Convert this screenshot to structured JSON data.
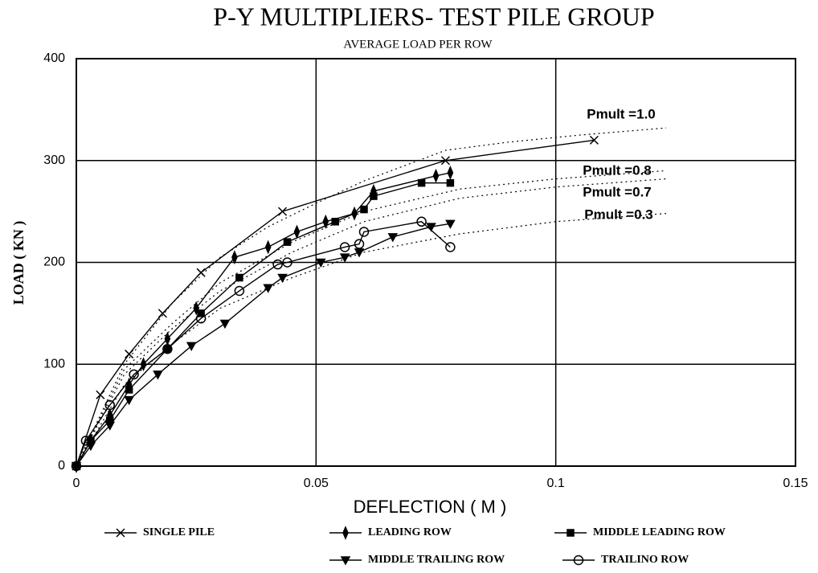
{
  "chart_data": {
    "type": "line",
    "title": "P-Y MULTIPLIERS- TEST PILE GROUP",
    "subtitle": "AVERAGE LOAD PER ROW",
    "x_label": "DEFLECTION ( M )",
    "y_label": "LOAD ( KN )",
    "xlim": [
      0,
      0.15
    ],
    "xticks": [
      0,
      0.05,
      0.1,
      0.15
    ],
    "ylim": [
      0,
      400
    ],
    "yticks": [
      0,
      100,
      200,
      300,
      400
    ],
    "grid": true,
    "color": "#000000",
    "series": [
      {
        "name": "SINGLE PILE",
        "marker": "x",
        "x": [
          0,
          0.005,
          0.011,
          0.018,
          0.026,
          0.043,
          0.077,
          0.108
        ],
        "values": [
          0,
          70,
          110,
          150,
          190,
          250,
          300,
          320
        ]
      },
      {
        "name": "LEADING ROW",
        "marker": "diamond",
        "x": [
          0,
          0.003,
          0.007,
          0.011,
          0.014,
          0.019,
          0.025,
          0.033,
          0.04,
          0.046,
          0.052,
          0.058,
          0.062,
          0.075,
          0.078
        ],
        "values": [
          0,
          25,
          50,
          80,
          100,
          125,
          155,
          205,
          215,
          230,
          240,
          248,
          270,
          285,
          288
        ]
      },
      {
        "name": "MIDDLE LEADING ROW",
        "marker": "square",
        "x": [
          0,
          0.003,
          0.007,
          0.011,
          0.019,
          0.026,
          0.034,
          0.044,
          0.054,
          0.06,
          0.062,
          0.072,
          0.078
        ],
        "values": [
          0,
          25,
          45,
          75,
          115,
          150,
          185,
          220,
          240,
          252,
          265,
          278,
          278
        ]
      },
      {
        "name": "MIDDLE TRAILING ROW",
        "marker": "triangle",
        "x": [
          0,
          0.003,
          0.007,
          0.011,
          0.017,
          0.024,
          0.031,
          0.04,
          0.043,
          0.051,
          0.056,
          0.059,
          0.066,
          0.074,
          0.078
        ],
        "values": [
          0,
          20,
          40,
          65,
          90,
          118,
          140,
          175,
          185,
          200,
          205,
          210,
          225,
          235,
          238
        ]
      },
      {
        "name": "TRAILINO ROW",
        "marker": "circle",
        "x": [
          0,
          0.002,
          0.007,
          0.012,
          0.019,
          0.026,
          0.034,
          0.042,
          0.044,
          0.056,
          0.059,
          0.06,
          0.072,
          0.078
        ],
        "values": [
          0,
          25,
          60,
          90,
          115,
          145,
          172,
          198,
          200,
          215,
          218,
          230,
          240,
          215
        ]
      }
    ],
    "fit_curves": [
      {
        "label": "Pmult =1.0",
        "x": [
          0,
          0.01,
          0.02,
          0.03,
          0.04,
          0.05,
          0.06,
          0.077,
          0.09,
          0.105,
          0.123
        ],
        "values": [
          0,
          100,
          160,
          205,
          235,
          258,
          280,
          310,
          318,
          325,
          332
        ]
      },
      {
        "label": "Pmult =0.8",
        "x": [
          0,
          0.01,
          0.02,
          0.03,
          0.045,
          0.06,
          0.08,
          0.1,
          0.123
        ],
        "values": [
          0,
          95,
          140,
          180,
          220,
          250,
          272,
          282,
          290
        ]
      },
      {
        "label": "Pmult =0.7",
        "x": [
          0,
          0.01,
          0.02,
          0.03,
          0.045,
          0.06,
          0.08,
          0.1,
          0.123
        ],
        "values": [
          0,
          90,
          135,
          172,
          210,
          240,
          263,
          274,
          282
        ]
      },
      {
        "label": "Pmult =0.3",
        "x": [
          0,
          0.01,
          0.02,
          0.03,
          0.045,
          0.06,
          0.08,
          0.1,
          0.123
        ],
        "values": [
          0,
          80,
          120,
          155,
          185,
          210,
          228,
          240,
          248
        ]
      }
    ]
  }
}
